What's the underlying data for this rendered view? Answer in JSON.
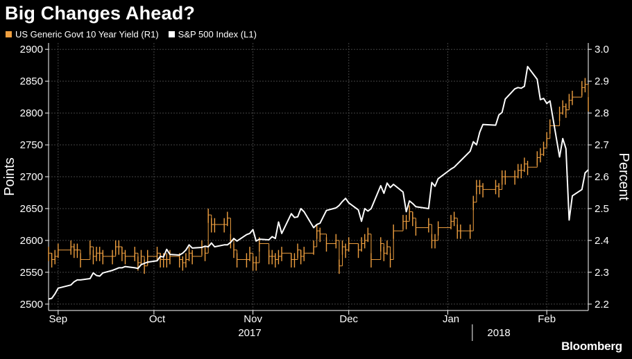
{
  "title": "Big Changes Ahead?",
  "source": "Bloomberg",
  "colors": {
    "background": "#000000",
    "yield": "#f0a040",
    "spx": "#ffffff",
    "grid": "#444444"
  },
  "legend": [
    {
      "label": "US Generic Govt 10 Year Yield  (R1)",
      "color": "#f0a040"
    },
    {
      "label": "S&P 500 Index  (L1)",
      "color": "#ffffff"
    }
  ],
  "chart_data": {
    "type": "line",
    "title": "Big Changes Ahead?",
    "ylabel_left": "Points",
    "ylabel_right": "Percent",
    "ylim_left": [
      2490,
      2910
    ],
    "ylim_right": [
      2.18,
      3.02
    ],
    "yticks_left": [
      2500,
      2550,
      2600,
      2650,
      2700,
      2750,
      2800,
      2850,
      2900
    ],
    "yticks_right": [
      "2.2",
      "2.3",
      "2.4",
      "2.5",
      "2.6",
      "2.7",
      "2.8",
      "2.9",
      "3.0"
    ],
    "x_range": [
      "2017-08-29",
      "2018-02-14"
    ],
    "x_month_ticks": [
      {
        "label": "Sep",
        "date": "2017-09-01"
      },
      {
        "label": "Oct",
        "date": "2017-10-02"
      },
      {
        "label": "Nov",
        "date": "2017-11-01"
      },
      {
        "label": "Dec",
        "date": "2017-12-01"
      },
      {
        "label": "Jan",
        "date": "2018-01-02"
      },
      {
        "label": "Feb",
        "date": "2018-02-01"
      }
    ],
    "x_month_boundaries": [
      "2017-09-01",
      "2017-10-01",
      "2017-11-01",
      "2017-12-01",
      "2018-01-01",
      "2018-02-01"
    ],
    "x_year_labels": [
      {
        "label": "2017",
        "date": "2017-10-31"
      },
      {
        "label": "2018",
        "date": "2018-01-17"
      }
    ],
    "series": [
      {
        "name": "S&P 500 Index  (L1)",
        "axis": "left",
        "color": "#ffffff",
        "x": [
          "2017-08-29",
          "2017-08-30",
          "2017-08-31",
          "2017-09-01",
          "2017-09-05",
          "2017-09-06",
          "2017-09-07",
          "2017-09-08",
          "2017-09-11",
          "2017-09-12",
          "2017-09-13",
          "2017-09-14",
          "2017-09-15",
          "2017-09-18",
          "2017-09-19",
          "2017-09-20",
          "2017-09-21",
          "2017-09-22",
          "2017-09-25",
          "2017-09-26",
          "2017-09-27",
          "2017-09-28",
          "2017-09-29",
          "2017-10-02",
          "2017-10-03",
          "2017-10-04",
          "2017-10-05",
          "2017-10-06",
          "2017-10-09",
          "2017-10-10",
          "2017-10-11",
          "2017-10-12",
          "2017-10-13",
          "2017-10-16",
          "2017-10-17",
          "2017-10-18",
          "2017-10-19",
          "2017-10-20",
          "2017-10-23",
          "2017-10-24",
          "2017-10-25",
          "2017-10-26",
          "2017-10-27",
          "2017-10-30",
          "2017-10-31",
          "2017-11-01",
          "2017-11-02",
          "2017-11-03",
          "2017-11-06",
          "2017-11-07",
          "2017-11-08",
          "2017-11-09",
          "2017-11-10",
          "2017-11-13",
          "2017-11-14",
          "2017-11-15",
          "2017-11-16",
          "2017-11-17",
          "2017-11-20",
          "2017-11-21",
          "2017-11-22",
          "2017-11-24",
          "2017-11-27",
          "2017-11-28",
          "2017-11-29",
          "2017-11-30",
          "2017-12-01",
          "2017-12-04",
          "2017-12-05",
          "2017-12-06",
          "2017-12-07",
          "2017-12-08",
          "2017-12-11",
          "2017-12-12",
          "2017-12-13",
          "2017-12-14",
          "2017-12-15",
          "2017-12-18",
          "2017-12-19",
          "2017-12-20",
          "2017-12-21",
          "2017-12-22",
          "2017-12-26",
          "2017-12-27",
          "2017-12-28",
          "2017-12-29",
          "2018-01-02",
          "2018-01-03",
          "2018-01-04",
          "2018-01-05",
          "2018-01-08",
          "2018-01-09",
          "2018-01-10",
          "2018-01-11",
          "2018-01-12",
          "2018-01-16",
          "2018-01-17",
          "2018-01-18",
          "2018-01-19",
          "2018-01-22",
          "2018-01-23",
          "2018-01-24",
          "2018-01-25",
          "2018-01-26",
          "2018-01-29",
          "2018-01-30",
          "2018-01-31",
          "2018-02-01",
          "2018-02-02",
          "2018-02-05",
          "2018-02-06",
          "2018-02-07",
          "2018-02-08",
          "2018-02-09",
          "2018-02-12",
          "2018-02-13",
          "2018-02-14"
        ],
        "values": [
          2508,
          2509,
          2516,
          2525,
          2530,
          2535,
          2538,
          2538,
          2540,
          2549,
          2545,
          2544,
          2549,
          2553,
          2555,
          2557,
          2557,
          2559,
          2557,
          2556,
          2562,
          2564,
          2566,
          2568,
          2575,
          2574,
          2586,
          2578,
          2577,
          2580,
          2585,
          2593,
          2588,
          2589,
          2591,
          2590,
          2596,
          2590,
          2593,
          2593,
          2597,
          2603,
          2599,
          2609,
          2611,
          2617,
          2599,
          2602,
          2601,
          2606,
          2603,
          2629,
          2611,
          2642,
          2636,
          2637,
          2650,
          2645,
          2620,
          2625,
          2627,
          2647,
          2651,
          2655,
          2661,
          2666,
          2659,
          2648,
          2630,
          2650,
          2646,
          2650,
          2686,
          2674,
          2690,
          2683,
          2688,
          2676,
          2645,
          2662,
          2658,
          2653,
          2650,
          2691,
          2685,
          2697,
          2712,
          2715,
          2720,
          2725,
          2740,
          2755,
          2750,
          2770,
          2782,
          2781,
          2797,
          2801,
          2822,
          2838,
          2840,
          2839,
          2842,
          2873,
          2853,
          2821,
          2823,
          2815,
          2819,
          2731,
          2760,
          2744,
          2632,
          2670,
          2680,
          2706,
          2711
        ]
      },
      {
        "name": "US Generic Govt 10 Year Yield  (R1)",
        "axis": "right",
        "color": "#f0a040",
        "x": [
          "2017-08-29",
          "2017-08-30",
          "2017-08-31",
          "2017-09-01",
          "2017-09-05",
          "2017-09-06",
          "2017-09-07",
          "2017-09-08",
          "2017-09-11",
          "2017-09-12",
          "2017-09-13",
          "2017-09-14",
          "2017-09-15",
          "2017-09-18",
          "2017-09-19",
          "2017-09-20",
          "2017-09-21",
          "2017-09-22",
          "2017-09-25",
          "2017-09-26",
          "2017-09-27",
          "2017-09-28",
          "2017-09-29",
          "2017-10-02",
          "2017-10-03",
          "2017-10-04",
          "2017-10-05",
          "2017-10-06",
          "2017-10-09",
          "2017-10-10",
          "2017-10-11",
          "2017-10-12",
          "2017-10-13",
          "2017-10-16",
          "2017-10-17",
          "2017-10-18",
          "2017-10-19",
          "2017-10-20",
          "2017-10-23",
          "2017-10-24",
          "2017-10-25",
          "2017-10-26",
          "2017-10-27",
          "2017-10-30",
          "2017-10-31",
          "2017-11-01",
          "2017-11-02",
          "2017-11-03",
          "2017-11-06",
          "2017-11-07",
          "2017-11-08",
          "2017-11-09",
          "2017-11-10",
          "2017-11-13",
          "2017-11-14",
          "2017-11-15",
          "2017-11-16",
          "2017-11-17",
          "2017-11-20",
          "2017-11-21",
          "2017-11-22",
          "2017-11-24",
          "2017-11-27",
          "2017-11-28",
          "2017-11-29",
          "2017-11-30",
          "2017-12-01",
          "2017-12-04",
          "2017-12-05",
          "2017-12-06",
          "2017-12-07",
          "2017-12-08",
          "2017-12-11",
          "2017-12-12",
          "2017-12-13",
          "2017-12-14",
          "2017-12-15",
          "2017-12-18",
          "2017-12-19",
          "2017-12-20",
          "2017-12-21",
          "2017-12-22",
          "2017-12-26",
          "2017-12-27",
          "2017-12-28",
          "2017-12-29",
          "2018-01-02",
          "2018-01-03",
          "2018-01-04",
          "2018-01-05",
          "2018-01-08",
          "2018-01-09",
          "2018-01-10",
          "2018-01-11",
          "2018-01-12",
          "2018-01-16",
          "2018-01-17",
          "2018-01-18",
          "2018-01-19",
          "2018-01-22",
          "2018-01-23",
          "2018-01-24",
          "2018-01-25",
          "2018-01-26",
          "2018-01-29",
          "2018-01-30",
          "2018-01-31",
          "2018-02-01",
          "2018-02-02",
          "2018-02-05",
          "2018-02-06",
          "2018-02-07",
          "2018-02-08",
          "2018-02-09",
          "2018-02-12",
          "2018-02-13",
          "2018-02-14"
        ],
        "high": [
          2.38,
          2.36,
          2.37,
          2.39,
          2.4,
          2.39,
          2.39,
          2.36,
          2.4,
          2.37,
          2.38,
          2.38,
          2.37,
          2.37,
          2.4,
          2.4,
          2.38,
          2.37,
          2.38,
          2.35,
          2.37,
          2.34,
          2.37,
          2.38,
          2.36,
          2.36,
          2.36,
          2.37,
          2.36,
          2.35,
          2.36,
          2.38,
          2.37,
          2.4,
          2.38,
          2.5,
          2.47,
          2.47,
          2.47,
          2.49,
          2.42,
          2.39,
          2.36,
          2.36,
          2.38,
          2.35,
          2.35,
          2.41,
          2.37,
          2.37,
          2.36,
          2.37,
          2.38,
          2.36,
          2.36,
          2.39,
          2.37,
          2.38,
          2.4,
          2.45,
          2.44,
          2.41,
          2.42,
          2.34,
          2.4,
          2.39,
          2.41,
          2.39,
          2.41,
          2.42,
          2.44,
          2.36,
          2.41,
          2.38,
          2.4,
          2.36,
          2.45,
          2.48,
          2.48,
          2.51,
          2.49,
          2.46,
          2.47,
          2.42,
          2.42,
          2.46,
          2.48,
          2.49,
          2.45,
          2.45,
          2.45,
          2.54,
          2.59,
          2.59,
          2.58,
          2.59,
          2.58,
          2.62,
          2.62,
          2.62,
          2.64,
          2.64,
          2.66,
          2.65,
          2.68,
          2.69,
          2.71,
          2.74,
          2.78,
          2.82,
          2.84,
          2.83,
          2.86,
          2.87,
          2.9,
          2.91,
          2.85
        ]
      }
    ]
  }
}
